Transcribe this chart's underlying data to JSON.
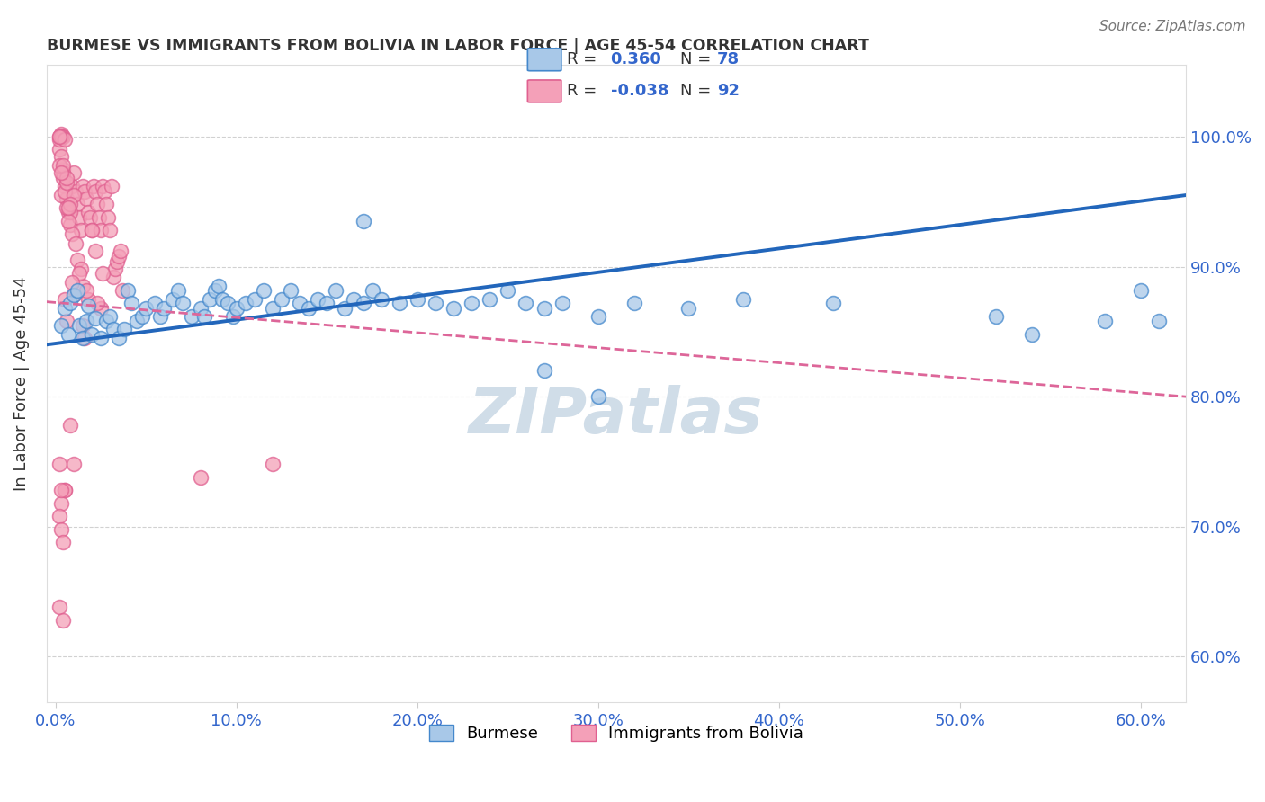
{
  "title": "BURMESE VS IMMIGRANTS FROM BOLIVIA IN LABOR FORCE | AGE 45-54 CORRELATION CHART",
  "source": "Source: ZipAtlas.com",
  "ylabel": "In Labor Force | Age 45-54",
  "xlim": [
    -0.005,
    0.625
  ],
  "ylim": [
    0.565,
    1.055
  ],
  "xlabel_ticks": [
    0.0,
    0.1,
    0.2,
    0.3,
    0.4,
    0.5,
    0.6
  ],
  "xlabel_labels": [
    "0.0%",
    "10.0%",
    "20.0%",
    "30.0%",
    "40.0%",
    "50.0%",
    "60.0%"
  ],
  "ylabel_ticks": [
    0.6,
    0.7,
    0.8,
    0.9,
    1.0
  ],
  "ylabel_labels": [
    "60.0%",
    "70.0%",
    "80.0%",
    "90.0%",
    "100.0%"
  ],
  "blue_R": 0.36,
  "blue_N": 78,
  "pink_R": -0.038,
  "pink_N": 92,
  "blue_color": "#a8c8e8",
  "pink_color": "#f4a0b8",
  "blue_edge_color": "#4488cc",
  "pink_edge_color": "#e06090",
  "blue_line_color": "#2266bb",
  "pink_line_color": "#dd6699",
  "watermark_color": "#d0dde8",
  "legend_label_blue": "Burmese",
  "legend_label_pink": "Immigrants from Bolivia",
  "blue_line_y0": 0.84,
  "blue_line_y1": 0.955,
  "pink_line_y0": 0.873,
  "pink_line_y1": 0.8,
  "blue_scatter_x": [
    0.003,
    0.005,
    0.007,
    0.008,
    0.01,
    0.012,
    0.013,
    0.015,
    0.017,
    0.018,
    0.02,
    0.022,
    0.025,
    0.028,
    0.03,
    0.032,
    0.035,
    0.038,
    0.04,
    0.042,
    0.045,
    0.048,
    0.05,
    0.055,
    0.058,
    0.06,
    0.065,
    0.068,
    0.07,
    0.075,
    0.08,
    0.082,
    0.085,
    0.088,
    0.09,
    0.092,
    0.095,
    0.098,
    0.1,
    0.105,
    0.11,
    0.115,
    0.12,
    0.125,
    0.13,
    0.135,
    0.14,
    0.145,
    0.15,
    0.155,
    0.16,
    0.165,
    0.17,
    0.175,
    0.18,
    0.19,
    0.2,
    0.21,
    0.22,
    0.23,
    0.24,
    0.25,
    0.26,
    0.27,
    0.28,
    0.3,
    0.32,
    0.35,
    0.38,
    0.43,
    0.3,
    0.52,
    0.17,
    0.27,
    0.54,
    0.58,
    0.6,
    0.61
  ],
  "blue_scatter_y": [
    0.855,
    0.868,
    0.848,
    0.872,
    0.878,
    0.882,
    0.855,
    0.845,
    0.858,
    0.87,
    0.848,
    0.86,
    0.845,
    0.858,
    0.862,
    0.852,
    0.845,
    0.852,
    0.882,
    0.872,
    0.858,
    0.862,
    0.868,
    0.872,
    0.862,
    0.868,
    0.875,
    0.882,
    0.872,
    0.862,
    0.868,
    0.862,
    0.875,
    0.882,
    0.885,
    0.875,
    0.872,
    0.862,
    0.868,
    0.872,
    0.875,
    0.882,
    0.868,
    0.875,
    0.882,
    0.872,
    0.868,
    0.875,
    0.872,
    0.882,
    0.868,
    0.875,
    0.872,
    0.882,
    0.875,
    0.872,
    0.875,
    0.872,
    0.868,
    0.872,
    0.875,
    0.882,
    0.872,
    0.868,
    0.872,
    0.862,
    0.872,
    0.868,
    0.875,
    0.872,
    0.8,
    0.862,
    0.935,
    0.82,
    0.848,
    0.858,
    0.882,
    0.858
  ],
  "pink_scatter_x": [
    0.002,
    0.003,
    0.004,
    0.005,
    0.006,
    0.007,
    0.008,
    0.009,
    0.01,
    0.011,
    0.012,
    0.013,
    0.014,
    0.015,
    0.016,
    0.017,
    0.018,
    0.019,
    0.02,
    0.021,
    0.022,
    0.023,
    0.024,
    0.025,
    0.026,
    0.027,
    0.028,
    0.029,
    0.03,
    0.031,
    0.032,
    0.033,
    0.034,
    0.035,
    0.036,
    0.037,
    0.003,
    0.005,
    0.008,
    0.01,
    0.004,
    0.006,
    0.009,
    0.012,
    0.015,
    0.018,
    0.022,
    0.025,
    0.007,
    0.011,
    0.014,
    0.017,
    0.02,
    0.023,
    0.026,
    0.004,
    0.008,
    0.013,
    0.003,
    0.006,
    0.01,
    0.016,
    0.002,
    0.005,
    0.009,
    0.002,
    0.004,
    0.007,
    0.003,
    0.006,
    0.002,
    0.004,
    0.003,
    0.005,
    0.002,
    0.015,
    0.003,
    0.006,
    0.008,
    0.01,
    0.08,
    0.005,
    0.003,
    0.12,
    0.005,
    0.002,
    0.003,
    0.004,
    0.002,
    0.003,
    0.002,
    0.004
  ],
  "pink_scatter_y": [
    0.99,
    1.0,
    0.975,
    0.962,
    0.952,
    0.942,
    0.932,
    0.962,
    0.972,
    0.958,
    0.948,
    0.938,
    0.928,
    0.962,
    0.958,
    0.952,
    0.942,
    0.938,
    0.928,
    0.962,
    0.958,
    0.948,
    0.938,
    0.928,
    0.962,
    0.958,
    0.948,
    0.938,
    0.928,
    0.962,
    0.892,
    0.898,
    0.904,
    0.908,
    0.912,
    0.882,
    0.955,
    0.958,
    0.942,
    0.955,
    0.968,
    0.945,
    0.925,
    0.905,
    0.885,
    0.875,
    0.912,
    0.868,
    0.935,
    0.918,
    0.898,
    0.882,
    0.928,
    0.872,
    0.895,
    0.972,
    0.948,
    0.895,
    0.985,
    0.965,
    0.878,
    0.845,
    0.978,
    0.875,
    0.888,
    0.998,
    0.978,
    0.945,
    1.002,
    0.968,
    1.0,
    1.0,
    1.0,
    0.998,
    1.0,
    0.855,
    0.972,
    0.858,
    0.778,
    0.748,
    0.738,
    0.728,
    0.718,
    0.748,
    0.728,
    0.708,
    0.698,
    0.688,
    0.748,
    0.728,
    0.638,
    0.628
  ]
}
